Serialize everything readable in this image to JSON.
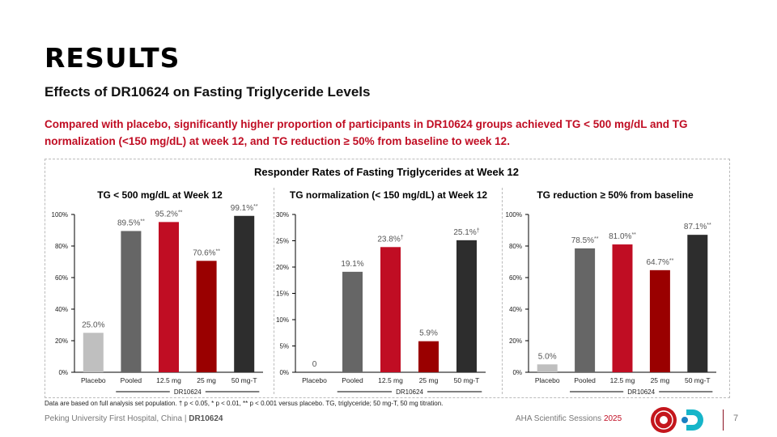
{
  "title": "RESULTS",
  "subtitle": "Effects of DR10624 on Fasting Triglyceride Levels",
  "intro": "Compared with placebo, significantly higher proportion of participants in DR10624 groups achieved TG < 500 mg/dL and TG normalization (<150 mg/dL) at week 12, and TG reduction ≥ 50% from baseline to week 12.",
  "panel_title": "Responder Rates of Fasting Triglycerides at Week 12",
  "colors": [
    "#bfbfbf",
    "#666666",
    "#c00d23",
    "#9a0000",
    "#2d2d2d"
  ],
  "chart_data": [
    {
      "type": "bar",
      "title": "TG < 500 mg/dL at Week 12",
      "categories": [
        "Placebo",
        "Pooled",
        "12.5 mg",
        "25 mg",
        "50 mg-T"
      ],
      "group_label": "DR10624",
      "values": [
        25.0,
        89.5,
        95.2,
        70.6,
        99.1
      ],
      "labels": [
        "25.0%",
        "89.5%",
        "95.2%",
        "70.6%",
        "99.1%"
      ],
      "sig": [
        "",
        "**",
        "**",
        "**",
        "**"
      ],
      "ylim": [
        0,
        100
      ],
      "yticks": [
        "0%",
        "20%",
        "40%",
        "60%",
        "80%",
        "100%"
      ]
    },
    {
      "type": "bar",
      "title": "TG normalization (< 150 mg/dL) at Week 12",
      "categories": [
        "Placebo",
        "Pooled",
        "12.5 mg",
        "25 mg",
        "50 mg-T"
      ],
      "group_label": "DR10624",
      "values": [
        0,
        19.1,
        23.8,
        5.9,
        25.1
      ],
      "labels": [
        "0",
        "19.1%",
        "23.8%",
        "5.9%",
        "25.1%"
      ],
      "sig": [
        "",
        "",
        "†",
        "",
        "†"
      ],
      "ylim": [
        0,
        30
      ],
      "yticks": [
        "0%",
        "5%",
        "10%",
        "15%",
        "20%",
        "25%",
        "30%"
      ]
    },
    {
      "type": "bar",
      "title": "TG reduction ≥ 50% from baseline",
      "categories": [
        "Placebo",
        "Pooled",
        "12.5 mg",
        "25 mg",
        "50 mg-T"
      ],
      "group_label": "DR10624",
      "values": [
        5.0,
        78.5,
        81.0,
        64.7,
        87.1
      ],
      "labels": [
        "5.0%",
        "78.5%",
        "81.0%",
        "64.7%",
        "87.1%"
      ],
      "sig": [
        "",
        "**",
        "**",
        "**",
        "**"
      ],
      "ylim": [
        0,
        100
      ],
      "yticks": [
        "0%",
        "20%",
        "40%",
        "60%",
        "80%",
        "100%"
      ]
    }
  ],
  "footnote": "Data are based on full analysis set population. † p < 0.05, * p < 0.01, ** p < 0.001 versus placebo. TG, triglyceride; 50 mg-T, 50 mg titration.",
  "footer": {
    "source": "Peking University First Hospital, China | ",
    "source_bold": "DR10624",
    "conference": "AHA Scientific Sessions ",
    "year": "2025",
    "page": "7"
  }
}
